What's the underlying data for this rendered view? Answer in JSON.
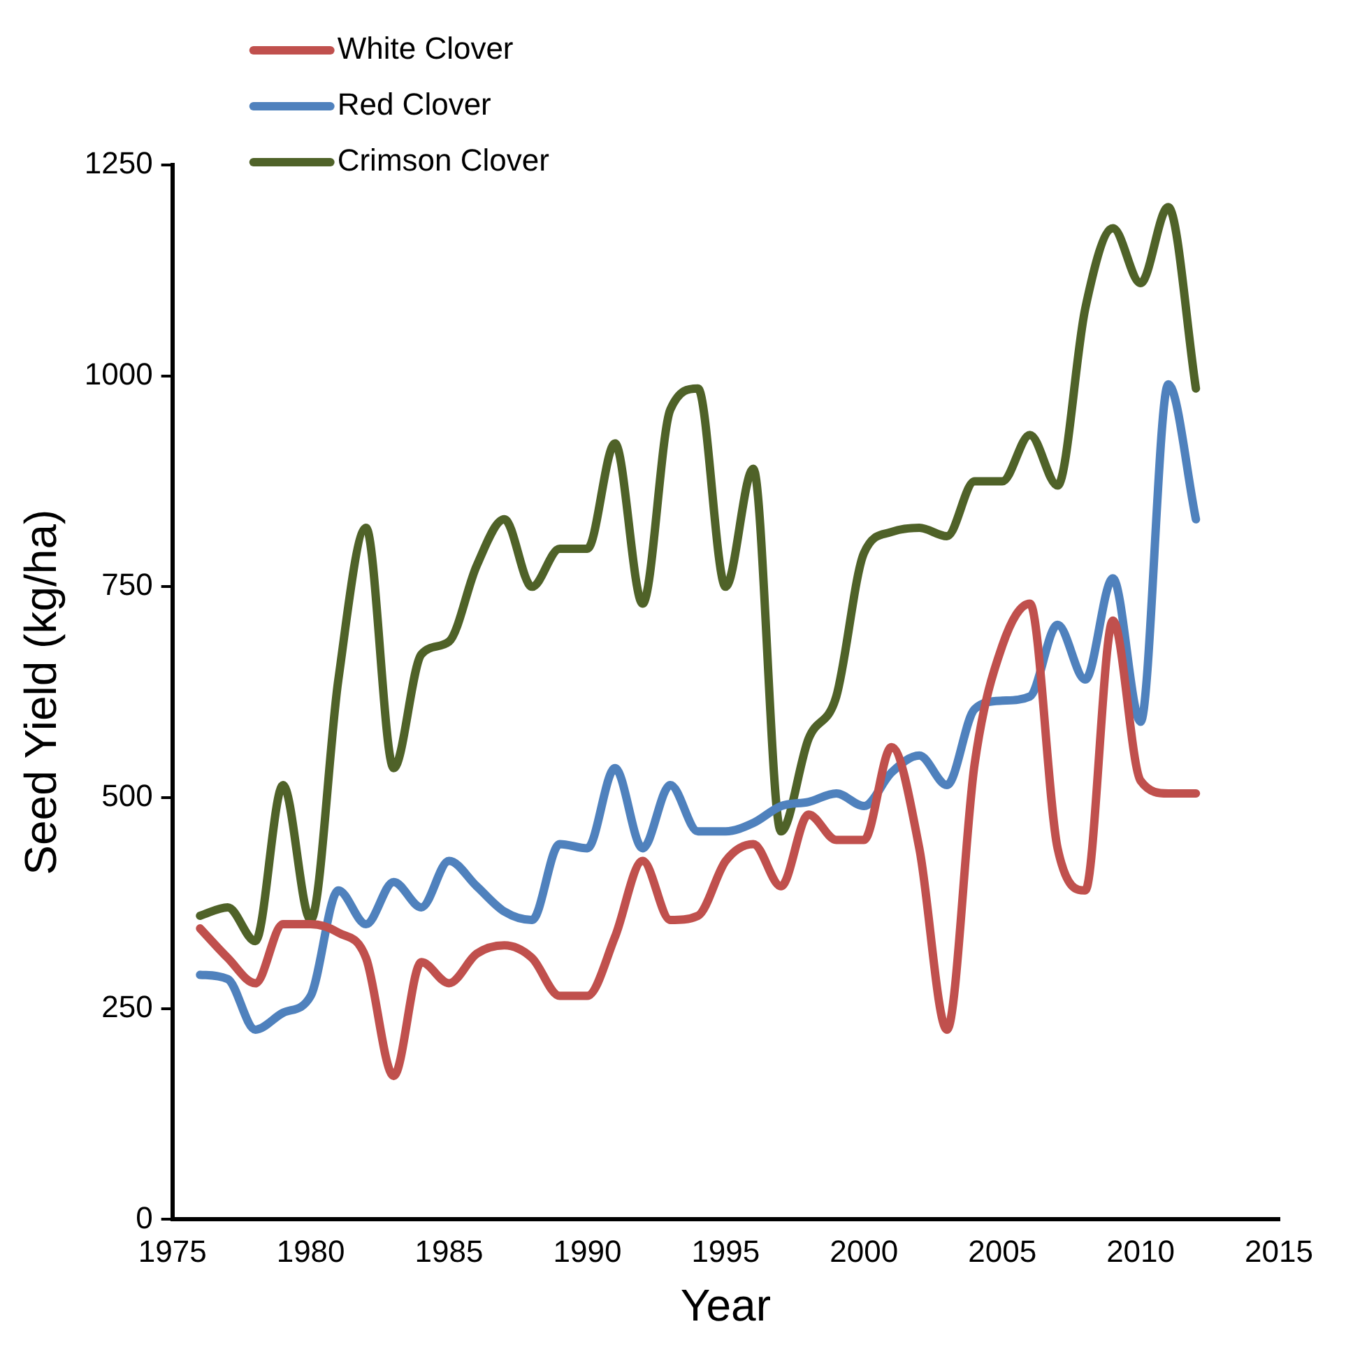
{
  "chart_data": {
    "type": "line",
    "xlabel": "Year",
    "ylabel": "Seed Yield (kg/ha)",
    "x": [
      1976,
      1977,
      1978,
      1979,
      1980,
      1981,
      1982,
      1983,
      1984,
      1985,
      1986,
      1987,
      1988,
      1989,
      1990,
      1991,
      1992,
      1993,
      1994,
      1995,
      1996,
      1997,
      1998,
      1999,
      2000,
      2001,
      2002,
      2003,
      2004,
      2005,
      2006,
      2007,
      2008,
      2009,
      2010,
      2011,
      2012
    ],
    "series": [
      {
        "name": "White Clover",
        "color": "#c0504d",
        "values": [
          345,
          310,
          280,
          350,
          350,
          340,
          310,
          170,
          305,
          280,
          315,
          325,
          310,
          265,
          265,
          335,
          425,
          355,
          360,
          425,
          445,
          395,
          480,
          450,
          450,
          560,
          440,
          225,
          540,
          680,
          730,
          440,
          390,
          710,
          520,
          505,
          505
        ]
      },
      {
        "name": "Red Clover",
        "color": "#4f81bd",
        "values": [
          290,
          285,
          225,
          245,
          265,
          390,
          350,
          400,
          370,
          425,
          395,
          365,
          355,
          445,
          440,
          535,
          440,
          515,
          460,
          460,
          470,
          490,
          495,
          505,
          490,
          530,
          550,
          515,
          605,
          615,
          620,
          705,
          640,
          760,
          590,
          990,
          830
        ]
      },
      {
        "name": "Crimson Clover",
        "color": "#4f6228",
        "values": [
          360,
          370,
          330,
          515,
          355,
          640,
          820,
          535,
          670,
          685,
          775,
          830,
          750,
          795,
          795,
          920,
          730,
          960,
          985,
          750,
          890,
          460,
          570,
          620,
          790,
          815,
          820,
          810,
          875,
          875,
          930,
          870,
          1080,
          1175,
          1110,
          1200,
          985
        ]
      }
    ],
    "xlim": [
      1975,
      2015
    ],
    "xticks": [
      1975,
      1980,
      1985,
      1990,
      1995,
      2000,
      2005,
      2010,
      2015
    ],
    "ylim": [
      0,
      1250
    ],
    "yticks": [
      0,
      250,
      500,
      750,
      1000,
      1250
    ],
    "grid": false,
    "legend": "top left",
    "marker": "none",
    "line_style": "solid"
  }
}
